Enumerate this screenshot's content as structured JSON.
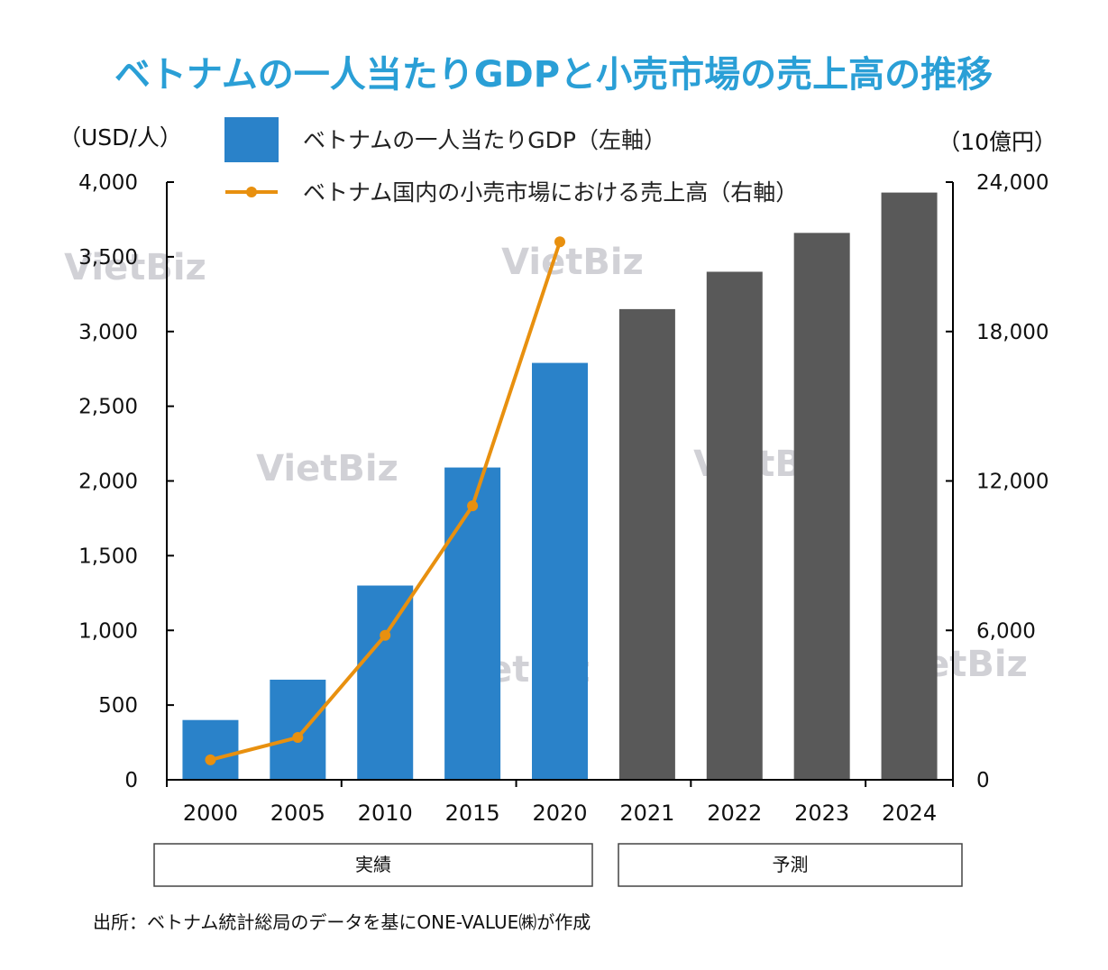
{
  "chart_data": {
    "type": "bar+line",
    "title": "ベトナムの一人当たりGDPと小売市場の売上高の推移",
    "left_axis_unit": "（USD/人）",
    "right_axis_unit": "（10億円）",
    "categories": [
      "2000",
      "2005",
      "2010",
      "2015",
      "2020",
      "2021",
      "2022",
      "2023",
      "2024"
    ],
    "left_axis": {
      "range": [
        0,
        4000
      ],
      "ticks": [
        "0",
        "500",
        "1,000",
        "1,500",
        "2,000",
        "2,500",
        "3,000",
        "3,500",
        "4,000"
      ]
    },
    "right_axis": {
      "range": [
        0,
        24000
      ],
      "ticks": [
        "0",
        "6,000",
        "12,000",
        "18,000",
        "24,000"
      ]
    },
    "series": [
      {
        "name": "ベトナムの一人当たりGDP（左軸）",
        "kind": "bar",
        "axis": "left",
        "values": [
          400,
          670,
          1300,
          2090,
          2790,
          3150,
          3400,
          3660,
          3930
        ],
        "colors": [
          "#2a82c9",
          "#2a82c9",
          "#2a82c9",
          "#2a82c9",
          "#2a82c9",
          "#595959",
          "#595959",
          "#595959",
          "#595959"
        ]
      },
      {
        "name": "ベトナム国内の小売市場における売上高（右軸）",
        "kind": "line",
        "axis": "right",
        "color": "#e8900f",
        "values": [
          800,
          1700,
          5800,
          11000,
          21600,
          null,
          null,
          null,
          null
        ]
      }
    ],
    "groups": [
      {
        "label": "実績",
        "from": 0,
        "to": 4
      },
      {
        "label": "予測",
        "from": 5,
        "to": 8
      }
    ],
    "source": "出所：ベトナム統計総局のデータを基にONE-VALUE㈱が作成",
    "watermark": "VietBiz"
  }
}
